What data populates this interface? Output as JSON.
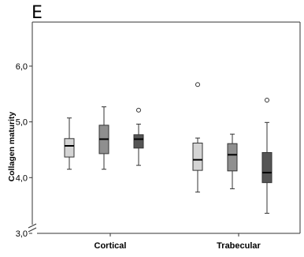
{
  "panel_letter": "E",
  "chart_data": {
    "type": "boxplot",
    "ylabel": "Collagen maturity",
    "xlabel": "",
    "ylim": [
      3.0,
      6.7
    ],
    "yticks": [
      3.0,
      4.0,
      5.0,
      6.0
    ],
    "ytick_labels": [
      "3,0",
      "4,0",
      "5,0",
      "6,0"
    ],
    "y_axis_break": true,
    "categories": [
      "Cortical",
      "Trabecular"
    ],
    "box_colors": [
      "#d4d4d4",
      "#8f8f8f",
      "#555555"
    ],
    "groups": [
      {
        "category": "Cortical",
        "boxes": [
          {
            "whisker_low": 4.15,
            "q1": 4.37,
            "median": 4.57,
            "q3": 4.7,
            "whisker_high": 5.07,
            "outliers": []
          },
          {
            "whisker_low": 4.15,
            "q1": 4.43,
            "median": 4.69,
            "q3": 4.94,
            "whisker_high": 5.27,
            "outliers": []
          },
          {
            "whisker_low": 4.22,
            "q1": 4.53,
            "median": 4.69,
            "q3": 4.77,
            "whisker_high": 4.96,
            "outliers": [
              5.21
            ]
          }
        ]
      },
      {
        "category": "Trabecular",
        "boxes": [
          {
            "whisker_low": 3.74,
            "q1": 4.13,
            "median": 4.32,
            "q3": 4.62,
            "whisker_high": 4.71,
            "outliers": [
              5.67
            ]
          },
          {
            "whisker_low": 3.8,
            "q1": 4.12,
            "median": 4.41,
            "q3": 4.61,
            "whisker_high": 4.78,
            "outliers": []
          },
          {
            "whisker_low": 3.36,
            "q1": 3.91,
            "median": 4.09,
            "q3": 4.45,
            "whisker_high": 4.99,
            "outliers": [
              5.39
            ]
          }
        ]
      }
    ]
  }
}
